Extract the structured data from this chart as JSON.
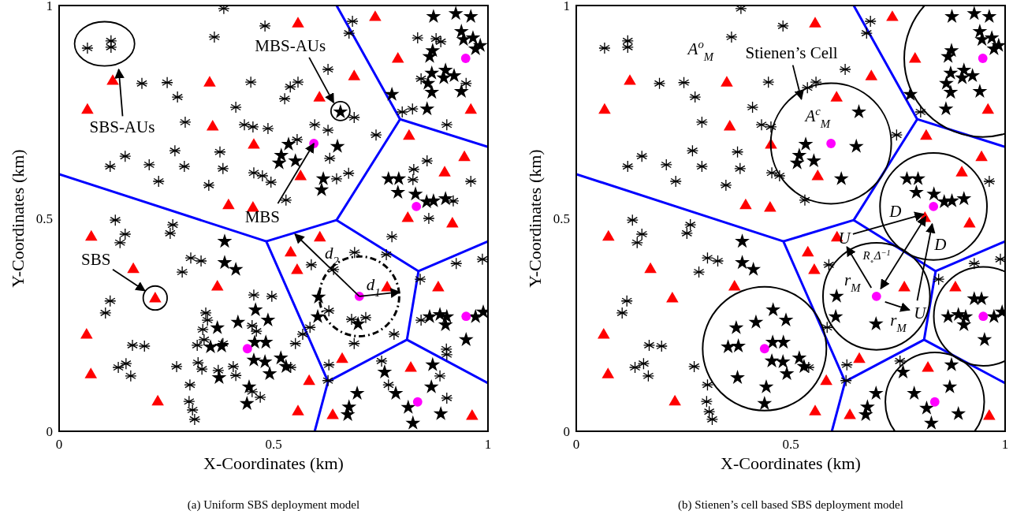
{
  "chart_data": [
    {
      "type": "scatter",
      "xlabel": "X-Coordinates (km)",
      "ylabel": "Y-Coordinates (km)",
      "xlim": [
        0,
        1
      ],
      "ylim": [
        0,
        1
      ],
      "xticks": [
        0,
        0.5,
        1
      ],
      "yticks": [
        0,
        0.5,
        1
      ],
      "annotations": [
        "SBS-AUs",
        "MBS-AUs",
        {
          "text": "MBS",
          "x": 0.594,
          "y": 0.676
        },
        "SBS",
        {
          "text": "d$_{2}$",
          "x": 0.55,
          "y": 0.463
        },
        "d$_{1}$",
        "(a) Uniform SBS deployment model"
      ],
      "series": [
        {
          "type": "line",
          "color": "#0000ff",
          "line_style": "solid",
          "x": [
            0.647,
            0.795,
            1,
            null,
            0.795,
            0.647,
            0.483,
            0,
            null,
            0.483,
            0.627,
            0.596,
            null,
            0.647,
            0.838,
            1,
            null,
            0.838,
            0.811,
            1,
            null,
            0.811,
            0.627
          ],
          "values": [
            1,
            0.733,
            0.668,
            null,
            0.733,
            0.496,
            0.446,
            0.604,
            null,
            0.446,
            0.117,
            0,
            null,
            0.496,
            0.376,
            0.446,
            null,
            0.376,
            0.215,
            0.113,
            null,
            0.215,
            0.117
          ]
        },
        {
          "color": "#000000",
          "marker": "cross",
          "x": [
            0.384,
            0.48,
            0.362,
            0.684,
            0.676,
            0.066,
            0.121,
            0.121,
            0.193,
            0.252,
            0.276,
            0.412,
            0.294,
            0.447,
            0.539,
            0.557,
            0.526,
            0.627,
            0.688,
            0.432,
            0.452,
            0.487,
            0.27,
            0.154,
            0.119,
            0.21,
            0.292,
            0.232,
            0.375,
            0.382,
            0.349,
            0.454,
            0.474,
            0.494,
            0.555,
            0.596,
            0.627,
            0.631,
            0.647,
            0.675,
            0.529,
            0.739,
            0.8,
            0.824,
            0.836,
            0.879,
            0.89,
            0.844,
            0.949,
            0.904,
            0.858,
            0.827,
            0.825,
            0.96,
            0.919,
            0.862,
            0.131,
            0.265,
            0.154,
            0.142,
            0.259,
            0.307,
            0.331,
            0.287,
            0.119,
            0.108,
            0.454,
            0.496,
            0.342,
            0.346,
            0.45,
            0.46,
            0.335,
            0.338,
            0.322,
            0.382,
            0.171,
            0.199,
            0.138,
            0.156,
            0.167,
            0.274,
            0.324,
            0.333,
            0.371,
            0.406,
            0.412,
            0.305,
            0.303,
            0.311,
            0.316,
            0.45,
            0.469,
            0.54,
            0.551,
            0.568,
            0.585,
            0.629,
            0.588,
            0.64,
            0.689,
            0.763,
            0.776,
            0.682,
            0.715,
            0.688,
            0.781,
            0.842,
            0.926,
            0.987,
            0.844,
            0.629,
            0.627,
            0.752,
            0.768,
            0.903,
            0.904,
            0.888,
            0.904
          ],
          "values": [
            0.993,
            0.952,
            0.926,
            0.963,
            0.935,
            0.9,
            0.917,
            0.902,
            0.817,
            0.819,
            0.785,
            0.761,
            0.726,
            0.82,
            0.809,
            0.82,
            0.781,
            0.85,
            0.737,
            0.72,
            0.715,
            0.711,
            0.659,
            0.646,
            0.622,
            0.626,
            0.622,
            0.587,
            0.656,
            0.617,
            0.578,
            0.607,
            0.6,
            0.585,
            0.685,
            0.72,
            0.707,
            0.641,
            0.593,
            0.606,
            0.543,
            0.696,
            0.75,
            0.757,
            0.924,
            0.922,
            0.915,
            0.828,
            0.817,
            0.72,
            0.635,
            0.615,
            0.591,
            0.587,
            0.541,
            0.5,
            0.496,
            0.485,
            0.463,
            0.443,
            0.465,
            0.407,
            0.4,
            0.374,
            0.306,
            0.278,
            0.32,
            0.317,
            0.278,
            0.261,
            0.248,
            0.235,
            0.239,
            0.215,
            0.202,
            0.206,
            0.202,
            0.2,
            0.15,
            0.159,
            0.13,
            0.152,
            0.161,
            0.146,
            0.143,
            0.152,
            0.131,
            0.109,
            0.07,
            0.05,
            0.028,
            0.093,
            0.08,
            0.15,
            0.206,
            0.228,
            0.244,
            0.283,
            0.391,
            0.38,
            0.42,
            0.415,
            0.457,
            0.263,
            0.267,
            0.206,
            0.228,
            0.357,
            0.394,
            0.404,
            0.261,
            0.156,
            0.119,
            0.165,
            0.109,
            0.193,
            0.18,
            0.13,
            0.078
          ]
        },
        {
          "color": "#000000",
          "marker": "star",
          "x": [
            0.873,
            0.925,
            0.96,
            0.938,
            0.965,
            0.943,
            0.982,
            0.871,
            0.864,
            0.971,
            0.869,
            0.901,
            0.897,
            0.921,
            0.86,
            0.869,
            0.938,
            0.776,
            0.858,
            0.656,
            0.535,
            0.518,
            0.513,
            0.551,
            0.649,
            0.616,
            0.612,
            0.768,
            0.792,
            0.79,
            0.831,
            0.857,
            0.873,
            0.901,
            0.386,
            0.386,
            0.412,
            0.458,
            0.487,
            0.417,
            0.369,
            0.353,
            0.379,
            0.456,
            0.482,
            0.454,
            0.48,
            0.517,
            0.529,
            0.491,
            0.373,
            0.443,
            0.438,
            0.605,
            0.603,
            0.697,
            0.864,
            0.888,
            0.904,
            0.901,
            0.971,
            0.989,
            0.949,
            0.871,
            0.759,
            0.868,
            0.695,
            0.785,
            0.676,
            0.673,
            0.814,
            0.89,
            0.825
          ],
          "values": [
            0.974,
            0.981,
            0.974,
            0.939,
            0.924,
            0.92,
            0.906,
            0.894,
            0.88,
            0.898,
            0.841,
            0.848,
            0.83,
            0.835,
            0.817,
            0.796,
            0.798,
            0.791,
            0.757,
            0.75,
            0.674,
            0.648,
            0.63,
            0.635,
            0.669,
            0.593,
            0.567,
            0.593,
            0.593,
            0.561,
            0.557,
            0.539,
            0.541,
            0.546,
            0.446,
            0.396,
            0.38,
            0.285,
            0.261,
            0.256,
            0.243,
            0.198,
            0.2,
            0.209,
            0.209,
            0.167,
            0.163,
            0.172,
            0.152,
            0.135,
            0.126,
            0.104,
            0.065,
            0.315,
            0.269,
            0.252,
            0.269,
            0.274,
            0.269,
            0.25,
            0.269,
            0.28,
            0.215,
            0.156,
            0.139,
            0.104,
            0.089,
            0.089,
            0.057,
            0.039,
            0.056,
            0.041,
            0.019
          ]
        },
        {
          "color": "#ff0000",
          "marker": "triangle",
          "x": [
            0.557,
            0.737,
            0.79,
            0.688,
            0.607,
            0.351,
            0.125,
            0.066,
            0.358,
            0.454,
            0.96,
            0.816,
            0.945,
            0.899,
            0.563,
            0.395,
            0.452,
            0.813,
            0.917,
            0.075,
            0.173,
            0.224,
            0.369,
            0.54,
            0.555,
            0.608,
            0.765,
            0.884,
            0.064,
            0.074,
            0.23,
            0.583,
            0.66,
            0.557,
            0.638,
            0.82,
            0.963
          ],
          "values": [
            0.957,
            0.972,
            0.874,
            0.833,
            0.783,
            0.818,
            0.822,
            0.754,
            0.715,
            0.672,
            0.754,
            0.693,
            0.643,
            0.607,
            0.598,
            0.53,
            0.524,
            0.5,
            0.487,
            0.456,
            0.38,
            0.311,
            0.339,
            0.419,
            0.378,
            0.454,
            0.337,
            0.337,
            0.226,
            0.133,
            0.069,
            0.117,
            0.169,
            0.046,
            0.037,
            0.148,
            0.035
          ]
        },
        {
          "color": "#ff00ff",
          "marker": "circle",
          "x": [
            0.594,
            0.948,
            0.833,
            0.7,
            0.439,
            0.949,
            0.836
          ],
          "values": [
            0.676,
            0.876,
            0.528,
            0.317,
            0.194,
            0.27,
            0.069
          ]
        }
      ]
    },
    {
      "type": "scatter",
      "xlabel": "X-Coordinates (km)",
      "ylabel": "Y-Coordinates (km)",
      "xlim": [
        0,
        1
      ],
      "ylim": [
        0,
        1
      ],
      "xticks": [
        0,
        0.5,
        1
      ],
      "yticks": [
        0,
        0.5,
        1
      ],
      "annotations": [
        "A$^{o}$$_{M}$",
        "Stienen’s Cell",
        "A$^{c}$$_{M}$",
        "D",
        "D",
        {
          "text": "U",
          "x": 0.81,
          "y": 0.51
        },
        "R$_{∘}$Δ$^{−1}$",
        "r$_{M}$",
        {
          "text": "U",
          "x": 0.83,
          "y": 0.487
        },
        "r$_{M}$",
        "(b) Stienen’s cell based SBS deployment model"
      ],
      "series": [
        {
          "type": "line",
          "color": "#0000ff",
          "line_style": "solid",
          "x": [
            0.647,
            0.795,
            1,
            null,
            0.795,
            0.647,
            0.483,
            0,
            null,
            0.483,
            0.627,
            0.596,
            null,
            0.647,
            0.838,
            1,
            null,
            0.838,
            0.811,
            1,
            null,
            0.811,
            0.627
          ],
          "values": [
            1,
            0.733,
            0.668,
            null,
            0.733,
            0.496,
            0.446,
            0.604,
            null,
            0.446,
            0.117,
            0,
            null,
            0.496,
            0.376,
            0.446,
            null,
            0.376,
            0.215,
            0.113,
            null,
            0.215,
            0.117
          ]
        },
        {
          "color": "#000000",
          "marker": "cross",
          "x": [
            0.384,
            0.482,
            0.362,
            0.686,
            0.677,
            0.066,
            0.12,
            0.12,
            0.194,
            0.251,
            0.277,
            0.411,
            0.293,
            0.448,
            0.539,
            0.559,
            0.627,
            0.432,
            0.454,
            0.153,
            0.12,
            0.21,
            0.293,
            0.271,
            0.232,
            0.376,
            0.382,
            0.349,
            0.456,
            0.474,
            0.533,
            0.747,
            0.803,
            0.963,
            0.131,
            0.266,
            0.153,
            0.142,
            0.258,
            0.306,
            0.33,
            0.286,
            0.118,
            0.107,
            0.17,
            0.199,
            0.137,
            0.157,
            0.168,
            0.275,
            0.306,
            0.304,
            0.31,
            0.317,
            0.542,
            0.585,
            0.589,
            0.928,
            0.989,
            0.845,
            0.631,
            0.629,
            0.755
          ],
          "values": [
            0.993,
            0.952,
            0.926,
            0.963,
            0.935,
            0.9,
            0.917,
            0.902,
            0.817,
            0.819,
            0.785,
            0.761,
            0.726,
            0.82,
            0.807,
            0.82,
            0.85,
            0.72,
            0.715,
            0.646,
            0.622,
            0.626,
            0.622,
            0.659,
            0.587,
            0.656,
            0.617,
            0.578,
            0.607,
            0.6,
            0.543,
            0.696,
            0.75,
            0.587,
            0.496,
            0.485,
            0.463,
            0.443,
            0.465,
            0.407,
            0.4,
            0.374,
            0.306,
            0.278,
            0.202,
            0.2,
            0.15,
            0.159,
            0.13,
            0.152,
            0.109,
            0.07,
            0.046,
            0.028,
            0.15,
            0.244,
            0.391,
            0.394,
            0.404,
            0.357,
            0.156,
            0.119,
            0.165
          ]
        },
        {
          "color": "#000000",
          "marker": "star",
          "x": [
            0.876,
            0.928,
            0.963,
            0.941,
            0.969,
            0.946,
            0.985,
            0.875,
            0.867,
            0.974,
            0.873,
            0.904,
            0.9,
            0.924,
            0.863,
            0.873,
            0.941,
            0.779,
            0.862,
            0.659,
            0.535,
            0.52,
            0.515,
            0.554,
            0.653,
            0.618,
            0.771,
            0.797,
            0.793,
            0.834,
            0.858,
            0.876,
            0.904,
            0.387,
            0.387,
            0.413,
            0.459,
            0.489,
            0.419,
            0.373,
            0.354,
            0.378,
            0.458,
            0.483,
            0.456,
            0.482,
            0.52,
            0.531,
            0.491,
            0.376,
            0.443,
            0.439,
            0.607,
            0.605,
            0.699,
            0.867,
            0.891,
            0.908,
            0.904,
            0.974,
            0.993,
            0.928,
            0.945,
            0.952,
            0.875,
            0.762,
            0.871,
            0.699,
            0.788,
            0.679,
            0.675,
            0.817,
            0.891,
            0.828
          ],
          "values": [
            0.974,
            0.981,
            0.974,
            0.939,
            0.924,
            0.92,
            0.906,
            0.894,
            0.88,
            0.898,
            0.841,
            0.848,
            0.83,
            0.835,
            0.817,
            0.796,
            0.798,
            0.791,
            0.757,
            0.75,
            0.674,
            0.648,
            0.63,
            0.635,
            0.669,
            0.593,
            0.593,
            0.593,
            0.561,
            0.557,
            0.539,
            0.541,
            0.546,
            0.446,
            0.396,
            0.38,
            0.285,
            0.261,
            0.256,
            0.243,
            0.198,
            0.2,
            0.209,
            0.209,
            0.165,
            0.163,
            0.172,
            0.152,
            0.135,
            0.126,
            0.104,
            0.065,
            0.317,
            0.269,
            0.252,
            0.269,
            0.274,
            0.269,
            0.25,
            0.269,
            0.28,
            0.311,
            0.311,
            0.215,
            0.156,
            0.139,
            0.104,
            0.089,
            0.089,
            0.057,
            0.039,
            0.054,
            0.041,
            0.019
          ]
        },
        {
          "color": "#ff0000",
          "marker": "triangle",
          "x": [
            0.557,
            0.737,
            0.79,
            0.688,
            0.607,
            0.351,
            0.125,
            0.066,
            0.358,
            0.454,
            0.96,
            0.816,
            0.945,
            0.899,
            0.563,
            0.395,
            0.452,
            0.813,
            0.917,
            0.075,
            0.173,
            0.224,
            0.369,
            0.54,
            0.555,
            0.608,
            0.765,
            0.884,
            0.064,
            0.074,
            0.23,
            0.583,
            0.66,
            0.557,
            0.638,
            0.82,
            0.963
          ],
          "values": [
            0.957,
            0.972,
            0.874,
            0.833,
            0.783,
            0.818,
            0.822,
            0.754,
            0.715,
            0.672,
            0.754,
            0.693,
            0.643,
            0.607,
            0.598,
            0.53,
            0.524,
            0.5,
            0.487,
            0.456,
            0.38,
            0.311,
            0.339,
            0.419,
            0.378,
            0.454,
            0.337,
            0.337,
            0.226,
            0.133,
            0.069,
            0.117,
            0.169,
            0.046,
            0.037,
            0.148,
            0.035
          ]
        },
        {
          "color": "#ff00ff",
          "marker": "circle",
          "x": [
            0.594,
            0.948,
            0.833,
            0.7,
            0.439,
            0.949,
            0.836
          ],
          "values": [
            0.676,
            0.876,
            0.528,
            0.317,
            0.194,
            0.27,
            0.069
          ]
        }
      ]
    }
  ]
}
